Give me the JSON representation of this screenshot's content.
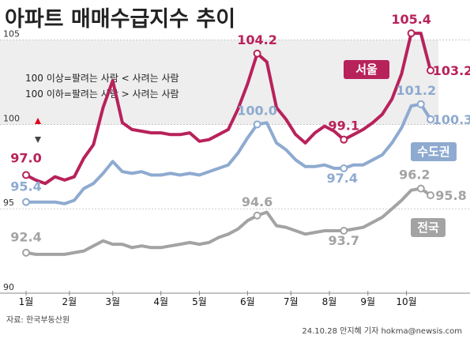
{
  "title": "아파트 매매수급지수 추이",
  "source": "자료: 한국부동산원",
  "credit": "24.10.28 안지혜 기자 hokma@newsis.com",
  "legend_notes": [
    "100 이상=팔려는 사람 < 사려는 사람",
    "100 이하=팔려는 사람 > 사려는 사람"
  ],
  "colors": {
    "seoul": "#b8225a",
    "capital": "#8eaad0",
    "national": "#a3a3a3",
    "up_arrow": "#e1001e",
    "down_arrow": "#444444",
    "band": "#eeeeee"
  },
  "chart_data": {
    "type": "line",
    "x": [
      0,
      1,
      2,
      3,
      4,
      5,
      6,
      7,
      8,
      9,
      10,
      11,
      12,
      13,
      14,
      15,
      16,
      17,
      18,
      19,
      20,
      21,
      22,
      23,
      24,
      25,
      26,
      27,
      28,
      29,
      30,
      31,
      32,
      33,
      34,
      35,
      36,
      37,
      38,
      39,
      40,
      41,
      42
    ],
    "x_tick_labels": [
      "1월",
      "2월",
      "3월",
      "4월",
      "5월",
      "6월",
      "7월",
      "8월",
      "9월",
      "10월"
    ],
    "x_tick_positions": [
      0,
      4.5,
      9,
      14,
      18,
      23,
      27.5,
      31.5,
      35.5,
      39.5
    ],
    "ylim": [
      90,
      105.5
    ],
    "y_ticks": [
      90,
      95,
      100,
      105
    ],
    "series": [
      {
        "name": "서울",
        "key": "seoul",
        "values": [
          97.0,
          96.7,
          96.5,
          96.9,
          96.7,
          96.9,
          98.0,
          98.8,
          101.0,
          102.6,
          100.1,
          99.7,
          99.6,
          99.5,
          99.5,
          99.4,
          99.4,
          99.5,
          99.0,
          99.1,
          99.4,
          99.7,
          100.9,
          102.4,
          104.2,
          103.7,
          101.0,
          100.3,
          99.4,
          98.9,
          99.5,
          99.9,
          99.6,
          99.1,
          99.4,
          99.7,
          100.1,
          100.6,
          101.5,
          103.0,
          105.4,
          105.4,
          103.2
        ],
        "start_label": "97.0",
        "annotations": [
          {
            "index": 24,
            "label": "104.2"
          },
          {
            "index": 33,
            "label": "99.1"
          },
          {
            "index": 40,
            "label": "105.4"
          },
          {
            "index": 42,
            "label": "103.2"
          }
        ],
        "tag": "서울"
      },
      {
        "name": "수도권",
        "key": "capital",
        "values": [
          95.4,
          95.4,
          95.4,
          95.4,
          95.3,
          95.5,
          96.2,
          96.5,
          97.1,
          97.8,
          97.2,
          97.1,
          97.2,
          97.0,
          97.0,
          97.1,
          97.0,
          97.1,
          97.0,
          97.2,
          97.4,
          97.6,
          98.3,
          99.2,
          100.0,
          100.1,
          98.9,
          98.5,
          97.9,
          97.5,
          97.5,
          97.6,
          97.4,
          97.4,
          97.6,
          97.6,
          97.9,
          98.2,
          98.9,
          99.8,
          101.1,
          101.2,
          100.3
        ],
        "start_label": "95.4",
        "annotations": [
          {
            "index": 24,
            "label": "100.0"
          },
          {
            "index": 33,
            "label": "97.4"
          },
          {
            "index": 41,
            "label": "101.2"
          },
          {
            "index": 42,
            "label": "100.3"
          }
        ],
        "tag": "수도권"
      },
      {
        "name": "전국",
        "key": "national",
        "values": [
          92.4,
          92.3,
          92.3,
          92.3,
          92.3,
          92.4,
          92.5,
          92.8,
          93.1,
          92.9,
          92.9,
          92.7,
          92.8,
          92.7,
          92.7,
          92.8,
          92.9,
          93.0,
          92.9,
          93.0,
          93.3,
          93.5,
          93.8,
          94.3,
          94.6,
          94.8,
          94.0,
          93.9,
          93.7,
          93.5,
          93.6,
          93.7,
          93.7,
          93.7,
          93.8,
          93.9,
          94.2,
          94.5,
          95.0,
          95.5,
          96.1,
          96.2,
          95.8
        ],
        "start_label": "92.4",
        "annotations": [
          {
            "index": 24,
            "label": "94.6"
          },
          {
            "index": 33,
            "label": "93.7"
          },
          {
            "index": 41,
            "label": "96.2"
          },
          {
            "index": 42,
            "label": "95.8"
          }
        ],
        "tag": "전국"
      }
    ]
  }
}
